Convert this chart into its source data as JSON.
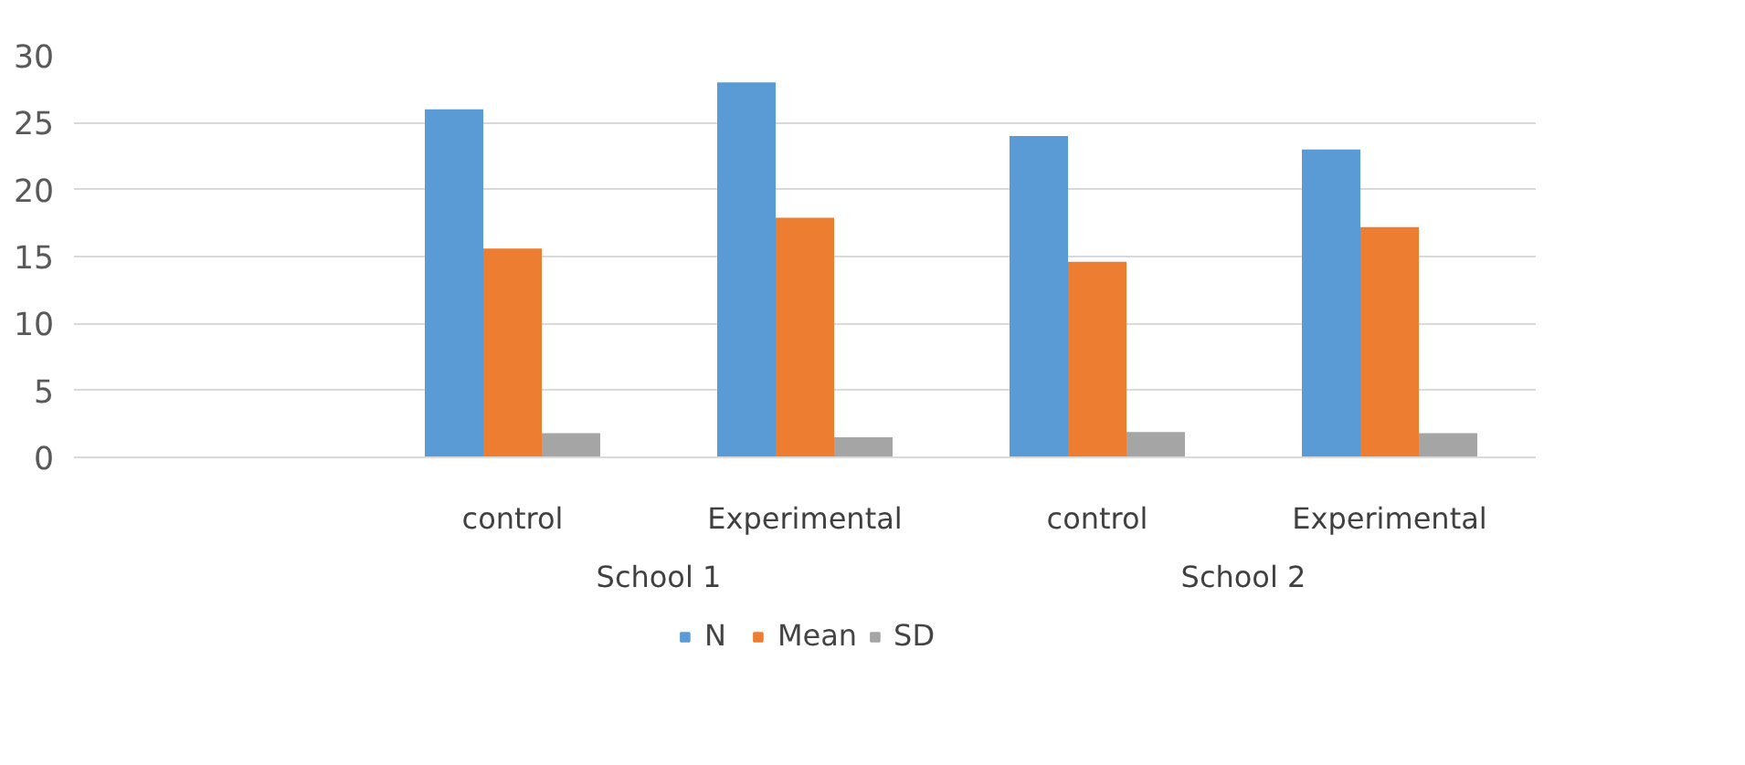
{
  "chart_data": {
    "type": "bar",
    "categories": [
      null,
      "control",
      "Experimental",
      "control",
      "Experimental"
    ],
    "series": [
      {
        "name": "N",
        "color": "#5b9bd5",
        "values": [
          null,
          26,
          28,
          24,
          23
        ]
      },
      {
        "name": "Mean",
        "color": "#ed7d31",
        "values": [
          null,
          15.6,
          17.9,
          14.6,
          17.2
        ]
      },
      {
        "name": "SD",
        "color": "#a5a5a5",
        "values": [
          null,
          1.8,
          1.5,
          1.9,
          1.8
        ]
      }
    ],
    "annotations": [
      "School 1",
      "School 2"
    ],
    "ylim": [
      0,
      30
    ],
    "yticks": [
      0,
      5,
      10,
      15,
      20,
      25,
      30
    ],
    "grid": "y",
    "legend": "bottom"
  }
}
